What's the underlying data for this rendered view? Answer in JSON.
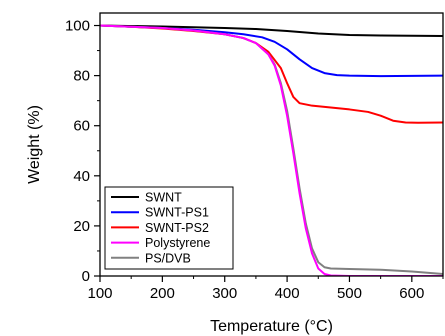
{
  "chart_data": {
    "type": "line",
    "title": "",
    "xlabel": "Temperature (°C)",
    "ylabel": "Weight (%)",
    "xlim": [
      100,
      650
    ],
    "ylim": [
      0,
      105
    ],
    "xticks": [
      100,
      200,
      300,
      400,
      500,
      600
    ],
    "yticks": [
      0,
      20,
      40,
      60,
      80,
      100
    ],
    "grid": false,
    "legend_position": "bottom-left",
    "series": [
      {
        "name": "SWNT",
        "color": "#000000",
        "x": [
          100,
          150,
          200,
          250,
          300,
          350,
          400,
          450,
          500,
          550,
          600,
          650
        ],
        "y": [
          100,
          99.8,
          99.6,
          99.3,
          99.0,
          98.6,
          97.8,
          96.8,
          96.2,
          96.0,
          95.9,
          95.8
        ]
      },
      {
        "name": "SWNT-PS1",
        "color": "#0000ff",
        "x": [
          100,
          150,
          200,
          250,
          300,
          330,
          360,
          380,
          400,
          420,
          440,
          460,
          480,
          500,
          550,
          600,
          650
        ],
        "y": [
          100,
          99.5,
          99.0,
          98.3,
          97.3,
          96.5,
          95.3,
          93.5,
          90.5,
          86.5,
          83.0,
          81.0,
          80.2,
          80.0,
          79.8,
          79.9,
          80.0
        ]
      },
      {
        "name": "SWNT-PS2",
        "color": "#ff0000",
        "x": [
          100,
          150,
          200,
          250,
          300,
          330,
          350,
          370,
          390,
          400,
          410,
          420,
          440,
          460,
          500,
          530,
          550,
          570,
          590,
          610,
          650
        ],
        "y": [
          100,
          99.5,
          98.8,
          97.8,
          96.5,
          95.0,
          93.0,
          89.5,
          83.0,
          77.0,
          71.5,
          69.0,
          68.0,
          67.5,
          66.5,
          65.5,
          64.0,
          62.0,
          61.3,
          61.2,
          61.3
        ]
      },
      {
        "name": "Polystyrene",
        "color": "#ff00ff",
        "x": [
          100,
          150,
          200,
          250,
          300,
          330,
          350,
          370,
          380,
          390,
          400,
          410,
          420,
          430,
          440,
          450,
          460,
          470,
          500,
          550,
          600,
          650
        ],
        "y": [
          100,
          99.5,
          99.0,
          98.0,
          96.5,
          95.0,
          93.0,
          88.5,
          84.0,
          76.0,
          64.0,
          49.0,
          33.0,
          19.0,
          9.0,
          3.0,
          0.8,
          0.2,
          0.0,
          0.0,
          0.0,
          0.0
        ]
      },
      {
        "name": "PS/DVB",
        "color": "#808080",
        "x": [
          100,
          150,
          200,
          250,
          300,
          330,
          350,
          370,
          380,
          390,
          400,
          410,
          420,
          430,
          440,
          450,
          460,
          470,
          500,
          550,
          600,
          650
        ],
        "y": [
          100,
          99.5,
          99.0,
          98.0,
          96.5,
          95.0,
          93.0,
          88.5,
          84.5,
          77.0,
          66.0,
          51.0,
          35.0,
          21.0,
          11.0,
          5.5,
          3.5,
          3.0,
          2.8,
          2.5,
          1.8,
          0.8
        ]
      }
    ]
  }
}
